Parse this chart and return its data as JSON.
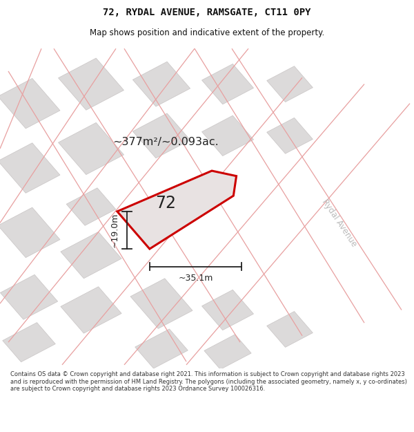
{
  "title": "72, RYDAL AVENUE, RAMSGATE, CT11 0PY",
  "subtitle": "Map shows position and indicative extent of the property.",
  "footer": "Contains OS data © Crown copyright and database right 2021. This information is subject to Crown copyright and database rights 2023 and is reproduced with the permission of HM Land Registry. The polygons (including the associated geometry, namely x, y co-ordinates) are subject to Crown copyright and database rights 2023 Ordnance Survey 100026316.",
  "title_color": "#111111",
  "area_label": "~377m²/~0.093ac.",
  "plot_number": "72",
  "dim_width": "~35.1m",
  "dim_height": "~19.0m",
  "street_label": "Rydal Avenue",
  "plot_color": "#cc0000",
  "plot_fill": "#e8e2e2",
  "building_fill": "#dcdada",
  "building_edge": "#c8c4c4",
  "road_color": "#e8a0a0",
  "dim_line_color": "#222222",
  "street_label_color": "#bbbbbb",
  "map_bg": "#eeecec",
  "fig_width": 6.0,
  "fig_height": 6.25,
  "title_fontsize": 10,
  "subtitle_fontsize": 8.5,
  "footer_fontsize": 6.0
}
